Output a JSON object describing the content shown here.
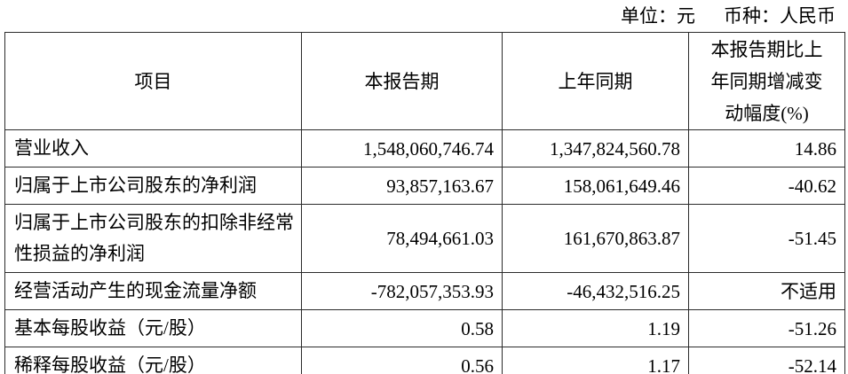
{
  "meta": {
    "unit_label": "单位：元",
    "currency_label": "币种：人民币"
  },
  "table": {
    "columns": {
      "item": "项目",
      "current_period": "本报告期",
      "prior_period": "上年同期",
      "change_pct": "本报告期比上\n年同期增减变\n动幅度(%)"
    },
    "rows": [
      {
        "item": "营业收入",
        "current_period": "1,548,060,746.74",
        "prior_period": "1,347,824,560.78",
        "change_pct": "14.86"
      },
      {
        "item": "归属于上市公司股东的净利润",
        "current_period": "93,857,163.67",
        "prior_period": "158,061,649.46",
        "change_pct": "-40.62"
      },
      {
        "item": "归属于上市公司股东的扣除非经常性损益的净利润",
        "current_period": "78,494,661.03",
        "prior_period": "161,670,863.87",
        "change_pct": "-51.45"
      },
      {
        "item": "经营活动产生的现金流量净额",
        "current_period": "-782,057,353.93",
        "prior_period": "-46,432,516.25",
        "change_pct": "不适用"
      },
      {
        "item": "基本每股收益（元/股）",
        "current_period": "0.58",
        "prior_period": "1.19",
        "change_pct": "-51.26"
      },
      {
        "item": "稀释每股收益（元/股）",
        "current_period": "0.56",
        "prior_period": "1.17",
        "change_pct": "-52.14"
      }
    ]
  }
}
